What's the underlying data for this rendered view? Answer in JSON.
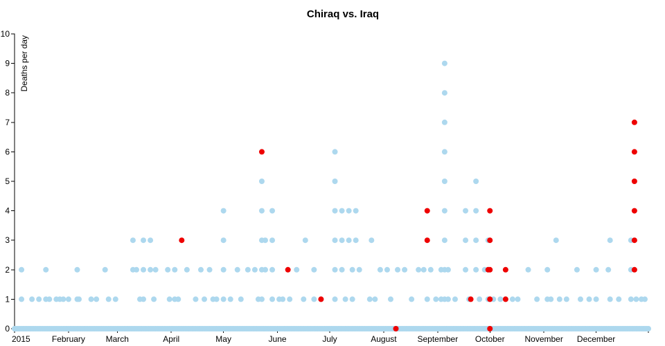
{
  "chart_data": {
    "type": "scatter",
    "title": "Chiraq vs. Iraq",
    "ylabel": "Deaths per day",
    "xlabel": "",
    "ylim": [
      0,
      10
    ],
    "yticks": [
      "0",
      "1",
      "2",
      "3",
      "4",
      "5",
      "6",
      "7",
      "8",
      "9",
      "10"
    ],
    "xlim": [
      "2015-01-01",
      "2015-12-31"
    ],
    "xticks": [
      {
        "date": "2015-01-01",
        "label": "2015"
      },
      {
        "date": "2015-02-01",
        "label": "February"
      },
      {
        "date": "2015-03-01",
        "label": "March"
      },
      {
        "date": "2015-04-01",
        "label": "April"
      },
      {
        "date": "2015-05-01",
        "label": "May"
      },
      {
        "date": "2015-06-01",
        "label": "June"
      },
      {
        "date": "2015-07-01",
        "label": "July"
      },
      {
        "date": "2015-08-01",
        "label": "August"
      },
      {
        "date": "2015-09-01",
        "label": "September"
      },
      {
        "date": "2015-10-01",
        "label": "October"
      },
      {
        "date": "2015-11-01",
        "label": "November"
      },
      {
        "date": "2015-12-01",
        "label": "December"
      }
    ],
    "colors": {
      "series_a": "#add8ee",
      "series_b": "#ee0000"
    },
    "grid": false,
    "series": [
      {
        "color": "#add8ee",
        "points": [
          [
            "2015-01-05",
            2
          ],
          [
            "2015-01-05",
            1
          ],
          [
            "2015-01-11",
            1
          ],
          [
            "2015-01-15",
            1
          ],
          [
            "2015-01-19",
            2
          ],
          [
            "2015-01-19",
            1
          ],
          [
            "2015-01-21",
            1
          ],
          [
            "2015-01-25",
            1
          ],
          [
            "2015-01-27",
            1
          ],
          [
            "2015-01-29",
            1
          ],
          [
            "2015-02-01",
            1
          ],
          [
            "2015-02-06",
            2
          ],
          [
            "2015-02-06",
            1
          ],
          [
            "2015-02-07",
            1
          ],
          [
            "2015-02-14",
            1
          ],
          [
            "2015-02-17",
            1
          ],
          [
            "2015-02-22",
            2
          ],
          [
            "2015-02-24",
            1
          ],
          [
            "2015-02-28",
            1
          ],
          [
            "2015-03-10",
            3
          ],
          [
            "2015-03-10",
            2
          ],
          [
            "2015-03-12",
            2
          ],
          [
            "2015-03-14",
            1
          ],
          [
            "2015-03-16",
            3
          ],
          [
            "2015-03-16",
            2
          ],
          [
            "2015-03-16",
            1
          ],
          [
            "2015-03-20",
            3
          ],
          [
            "2015-03-20",
            2
          ],
          [
            "2015-03-22",
            1
          ],
          [
            "2015-03-23",
            2
          ],
          [
            "2015-03-30",
            2
          ],
          [
            "2015-03-31",
            1
          ],
          [
            "2015-04-03",
            2
          ],
          [
            "2015-04-03",
            1
          ],
          [
            "2015-04-05",
            1
          ],
          [
            "2015-04-10",
            2
          ],
          [
            "2015-04-15",
            1
          ],
          [
            "2015-04-18",
            2
          ],
          [
            "2015-04-20",
            1
          ],
          [
            "2015-04-23",
            2
          ],
          [
            "2015-04-25",
            1
          ],
          [
            "2015-04-27",
            1
          ],
          [
            "2015-05-01",
            4
          ],
          [
            "2015-05-01",
            3
          ],
          [
            "2015-05-01",
            2
          ],
          [
            "2015-05-01",
            1
          ],
          [
            "2015-05-05",
            1
          ],
          [
            "2015-05-09",
            2
          ],
          [
            "2015-05-11",
            1
          ],
          [
            "2015-05-15",
            2
          ],
          [
            "2015-05-19",
            2
          ],
          [
            "2015-05-21",
            1
          ],
          [
            "2015-05-23",
            5
          ],
          [
            "2015-05-23",
            4
          ],
          [
            "2015-05-23",
            3
          ],
          [
            "2015-05-23",
            2
          ],
          [
            "2015-05-23",
            1
          ],
          [
            "2015-05-25",
            3
          ],
          [
            "2015-05-25",
            2
          ],
          [
            "2015-05-29",
            4
          ],
          [
            "2015-05-29",
            3
          ],
          [
            "2015-05-29",
            2
          ],
          [
            "2015-05-29",
            1
          ],
          [
            "2015-06-02",
            1
          ],
          [
            "2015-06-04",
            1
          ],
          [
            "2015-06-08",
            1
          ],
          [
            "2015-06-12",
            2
          ],
          [
            "2015-06-16",
            1
          ],
          [
            "2015-06-17",
            3
          ],
          [
            "2015-06-22",
            2
          ],
          [
            "2015-06-22",
            1
          ],
          [
            "2015-06-26",
            1
          ],
          [
            "2015-07-04",
            6
          ],
          [
            "2015-07-04",
            5
          ],
          [
            "2015-07-04",
            4
          ],
          [
            "2015-07-04",
            3
          ],
          [
            "2015-07-04",
            2
          ],
          [
            "2015-07-04",
            1
          ],
          [
            "2015-07-08",
            4
          ],
          [
            "2015-07-08",
            3
          ],
          [
            "2015-07-08",
            2
          ],
          [
            "2015-07-10",
            1
          ],
          [
            "2015-07-12",
            4
          ],
          [
            "2015-07-12",
            3
          ],
          [
            "2015-07-14",
            2
          ],
          [
            "2015-07-14",
            1
          ],
          [
            "2015-07-16",
            4
          ],
          [
            "2015-07-16",
            3
          ],
          [
            "2015-07-18",
            2
          ],
          [
            "2015-07-24",
            1
          ],
          [
            "2015-07-25",
            3
          ],
          [
            "2015-07-27",
            1
          ],
          [
            "2015-07-30",
            2
          ],
          [
            "2015-08-03",
            2
          ],
          [
            "2015-08-05",
            1
          ],
          [
            "2015-08-09",
            2
          ],
          [
            "2015-08-13",
            2
          ],
          [
            "2015-08-17",
            1
          ],
          [
            "2015-08-21",
            2
          ],
          [
            "2015-08-24",
            2
          ],
          [
            "2015-08-26",
            1
          ],
          [
            "2015-08-28",
            2
          ],
          [
            "2015-08-31",
            1
          ],
          [
            "2015-09-03",
            2
          ],
          [
            "2015-09-03",
            1
          ],
          [
            "2015-09-05",
            9
          ],
          [
            "2015-09-05",
            8
          ],
          [
            "2015-09-05",
            7
          ],
          [
            "2015-09-05",
            6
          ],
          [
            "2015-09-05",
            5
          ],
          [
            "2015-09-05",
            4
          ],
          [
            "2015-09-05",
            3
          ],
          [
            "2015-09-05",
            2
          ],
          [
            "2015-09-05",
            1
          ],
          [
            "2015-09-07",
            2
          ],
          [
            "2015-09-07",
            1
          ],
          [
            "2015-09-11",
            1
          ],
          [
            "2015-09-17",
            4
          ],
          [
            "2015-09-17",
            3
          ],
          [
            "2015-09-17",
            2
          ],
          [
            "2015-09-19",
            1
          ],
          [
            "2015-09-23",
            5
          ],
          [
            "2015-09-23",
            4
          ],
          [
            "2015-09-23",
            3
          ],
          [
            "2015-09-23",
            2
          ],
          [
            "2015-09-25",
            1
          ],
          [
            "2015-09-28",
            2
          ],
          [
            "2015-09-30",
            3
          ],
          [
            "2015-09-30",
            2
          ],
          [
            "2015-09-30",
            1
          ],
          [
            "2015-10-03",
            1
          ],
          [
            "2015-10-07",
            1
          ],
          [
            "2015-10-10",
            1
          ],
          [
            "2015-10-14",
            1
          ],
          [
            "2015-10-17",
            1
          ],
          [
            "2015-10-23",
            2
          ],
          [
            "2015-10-28",
            1
          ],
          [
            "2015-11-03",
            2
          ],
          [
            "2015-11-03",
            1
          ],
          [
            "2015-11-05",
            1
          ],
          [
            "2015-11-08",
            3
          ],
          [
            "2015-11-10",
            1
          ],
          [
            "2015-11-14",
            1
          ],
          [
            "2015-11-20",
            2
          ],
          [
            "2015-11-22",
            1
          ],
          [
            "2015-11-27",
            1
          ],
          [
            "2015-12-01",
            2
          ],
          [
            "2015-12-01",
            1
          ],
          [
            "2015-12-08",
            2
          ],
          [
            "2015-12-09",
            3
          ],
          [
            "2015-12-09",
            1
          ],
          [
            "2015-12-14",
            1
          ],
          [
            "2015-12-21",
            3
          ],
          [
            "2015-12-21",
            2
          ],
          [
            "2015-12-21",
            1
          ],
          [
            "2015-12-24",
            1
          ],
          [
            "2015-12-27",
            1
          ],
          [
            "2015-12-29",
            1
          ]
        ],
        "zero_days": "all"
      },
      {
        "color": "#ee0000",
        "points": [
          [
            "2015-04-07",
            3
          ],
          [
            "2015-05-23",
            6
          ],
          [
            "2015-06-07",
            2
          ],
          [
            "2015-06-26",
            1
          ],
          [
            "2015-08-08",
            0
          ],
          [
            "2015-08-26",
            4
          ],
          [
            "2015-08-26",
            3
          ],
          [
            "2015-09-20",
            1
          ],
          [
            "2015-10-01",
            4
          ],
          [
            "2015-10-01",
            3
          ],
          [
            "2015-10-01",
            2
          ],
          [
            "2015-10-01",
            1
          ],
          [
            "2015-10-01",
            0
          ],
          [
            "2015-09-30",
            2
          ],
          [
            "2015-10-10",
            2
          ],
          [
            "2015-10-10",
            1
          ],
          [
            "2015-12-23",
            7
          ],
          [
            "2015-12-23",
            6
          ],
          [
            "2015-12-23",
            5
          ],
          [
            "2015-12-23",
            4
          ],
          [
            "2015-12-23",
            3
          ],
          [
            "2015-12-23",
            2
          ]
        ]
      }
    ]
  }
}
